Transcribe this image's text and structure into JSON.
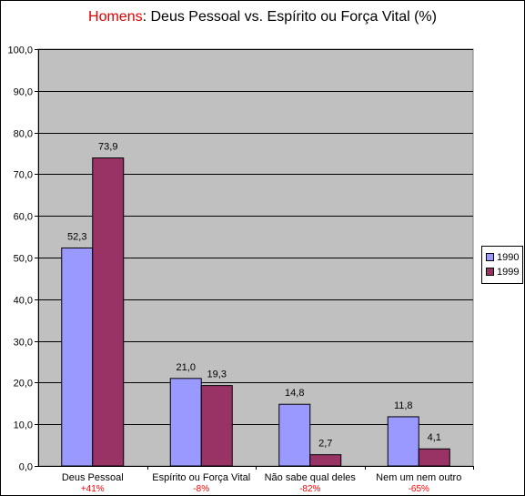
{
  "title": {
    "highlight": "Homens",
    "rest": ": Deus Pessoal vs. Espírito ou Força Vital (%)"
  },
  "colors": {
    "series_1990": "#9999ff",
    "series_1999": "#993366",
    "plot_bg": "#c0c0c0",
    "change": "#ff0000"
  },
  "chart_data": {
    "type": "bar",
    "categories": [
      "Deus Pessoal",
      "Espírito ou Força Vital",
      "Não sabe qual deles",
      "Nem um nem outro"
    ],
    "category_changes": [
      "+41%",
      "-8%",
      "-82%",
      "-65%"
    ],
    "series": [
      {
        "name": "1990",
        "values": [
          52.3,
          21.0,
          14.8,
          11.8
        ],
        "labels": [
          "52,3",
          "21,0",
          "14,8",
          "11,8"
        ]
      },
      {
        "name": "1999",
        "values": [
          73.9,
          19.3,
          2.7,
          4.1
        ],
        "labels": [
          "73,9",
          "19,3",
          "2,7",
          "4,1"
        ]
      }
    ],
    "ylim": [
      0,
      100
    ],
    "yticks": [
      "0,0",
      "10,0",
      "20,0",
      "30,0",
      "40,0",
      "50,0",
      "60,0",
      "70,0",
      "80,0",
      "90,0",
      "100,0"
    ],
    "grid": true,
    "legend_position": "right"
  }
}
